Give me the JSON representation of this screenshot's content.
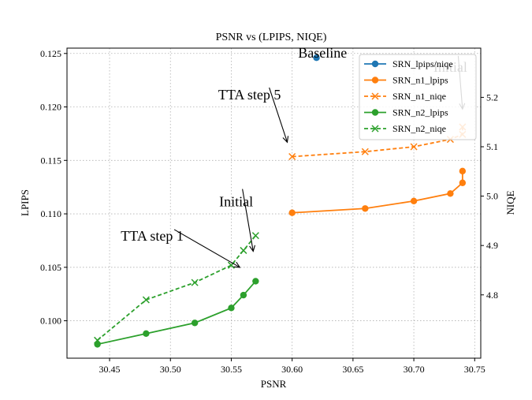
{
  "chart_data": {
    "type": "line",
    "title": "PSNR vs (LPIPS, NIQE)",
    "xlabel": "PSNR",
    "ylabel_left": "LPIPS",
    "ylabel_right": "NIQE",
    "xlim": [
      30.415,
      30.755
    ],
    "ylim_left": [
      0.1255,
      0.0965
    ],
    "ylim_right": [
      5.2997,
      4.6718
    ],
    "xticks": [
      "30.45",
      "30.50",
      "30.55",
      "30.60",
      "30.65",
      "30.70",
      "30.75"
    ],
    "xtick_values": [
      30.45,
      30.5,
      30.55,
      30.6,
      30.65,
      30.7,
      30.75
    ],
    "yticks_left": [
      "0.100",
      "0.105",
      "0.110",
      "0.115",
      "0.120",
      "0.125"
    ],
    "ytick_values_left": [
      0.1,
      0.105,
      0.11,
      0.115,
      0.12,
      0.125
    ],
    "yticks_right": [
      "4.8",
      "4.9",
      "5.0",
      "5.1",
      "5.2"
    ],
    "ytick_values_right": [
      4.8,
      4.9,
      5.0,
      5.1,
      5.2
    ],
    "grid": true,
    "legend_position": "top-right",
    "series": [
      {
        "name": "SRN_lpips/niqe",
        "color": "#1f77b4",
        "axis": "left",
        "marker": "circle",
        "line": "none",
        "x": [
          30.62
        ],
        "y": [
          0.1246
        ]
      },
      {
        "name": "SRN_n1_lpips",
        "color": "#ff7f0e",
        "axis": "left",
        "marker": "circle",
        "line": "solid",
        "x": [
          30.6,
          30.66,
          30.7,
          30.73,
          30.74,
          30.74
        ],
        "y": [
          0.1101,
          0.1105,
          0.1112,
          0.1119,
          0.1129,
          0.114
        ]
      },
      {
        "name": "SRN_n1_niqe",
        "color": "#ff7f0e",
        "axis": "right",
        "marker": "x",
        "line": "dashed",
        "x": [
          30.6,
          30.66,
          30.7,
          30.73,
          30.74,
          30.74
        ],
        "y": [
          5.08,
          5.09,
          5.1,
          5.115,
          5.125,
          5.14
        ]
      },
      {
        "name": "SRN_n2_lpips",
        "color": "#2ca02c",
        "axis": "left",
        "marker": "circle",
        "line": "solid",
        "x": [
          30.44,
          30.48,
          30.52,
          30.55,
          30.56,
          30.57
        ],
        "y": [
          0.0978,
          0.0988,
          0.0998,
          0.1012,
          0.1024,
          0.1037
        ]
      },
      {
        "name": "SRN_n2_niqe",
        "color": "#2ca02c",
        "axis": "right",
        "marker": "x",
        "line": "dashed",
        "x": [
          30.44,
          30.48,
          30.52,
          30.55,
          30.56,
          30.57
        ],
        "y": [
          4.708,
          4.79,
          4.825,
          4.86,
          4.89,
          4.92
        ]
      }
    ],
    "annotations": [
      {
        "text": "TTA step 1",
        "text_x": 30.485,
        "text_y": 0.1075,
        "arrow_x": 30.557,
        "arrow_y": 0.105
      },
      {
        "text": "Initial",
        "text_x": 30.554,
        "text_y": 0.1107,
        "arrow_x": 30.568,
        "arrow_y": 0.1065
      },
      {
        "text": "TTA step 5",
        "text_x": 30.565,
        "text_y": 0.1207,
        "arrow_x": 30.596,
        "arrow_y": 0.1167
      },
      {
        "text": "Initial",
        "text_x": 30.73,
        "text_y": 0.1233,
        "arrow_x": 30.74,
        "arrow_y": 0.1198
      },
      {
        "text": "Baseline",
        "text_x": 30.625,
        "text_y": 0.1246
      }
    ]
  }
}
